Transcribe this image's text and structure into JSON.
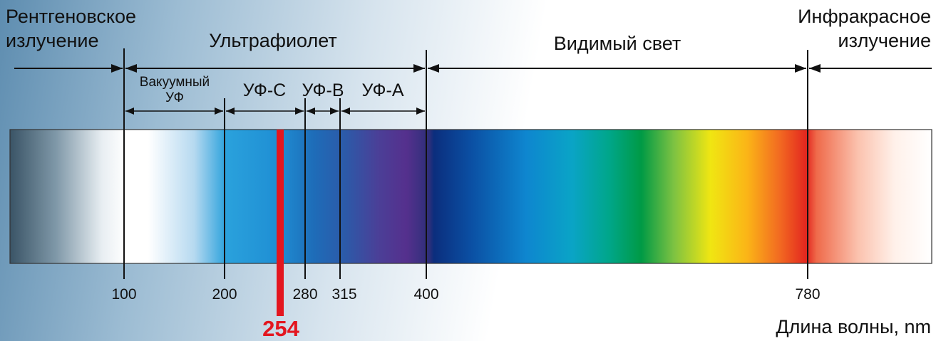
{
  "regions": {
    "xray": [
      "Рентгеновское",
      "излучение"
    ],
    "uv": "Ультрафиолет",
    "visible": "Видимый свет",
    "infrared": [
      "Инфракрасное",
      "излучение"
    ]
  },
  "subregions": {
    "vacuum_uv": [
      "Вакуумный",
      "УФ"
    ],
    "uv_c": "УФ-С",
    "uv_b": "УФ-В",
    "uv_a": "УФ-А"
  },
  "ticks": [
    "100",
    "200",
    "280",
    "315",
    "400",
    "780"
  ],
  "highlight": {
    "label": "254",
    "color": "#e3161f"
  },
  "axis_label": "Длина волны, nm"
}
